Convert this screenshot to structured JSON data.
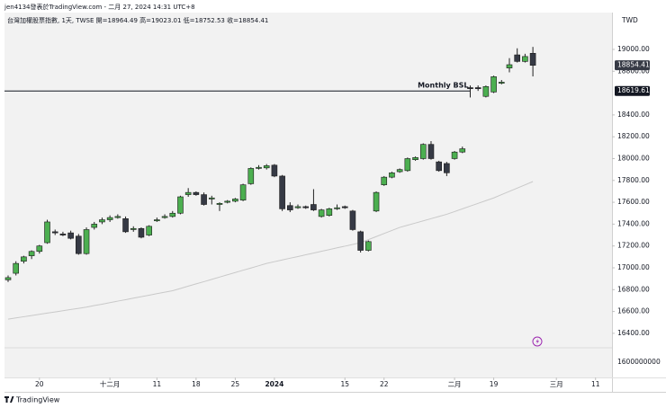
{
  "chart_data": {
    "type": "candlestick",
    "title": "jen4134發表於TradingView.com - 二月 27, 2024 14:31 UTC+8",
    "subtitle": "台灣加權股票指數, 1天, TWSE  開=18964.49 高=19023.01 低=18752.53 收=18854.41",
    "currency": "TWD",
    "brand": "TradingView",
    "up_color": "#4caf50",
    "down_color": "#363a45",
    "ohlc": [
      [
        16890,
        16930,
        16870,
        16910
      ],
      [
        16950,
        17060,
        16930,
        17040
      ],
      [
        17060,
        17110,
        17040,
        17100
      ],
      [
        17110,
        17160,
        17080,
        17150
      ],
      [
        17150,
        17210,
        17130,
        17200
      ],
      [
        17230,
        17440,
        17220,
        17420
      ],
      [
        17330,
        17350,
        17300,
        17320
      ],
      [
        17310,
        17330,
        17290,
        17300
      ],
      [
        17320,
        17340,
        17260,
        17270
      ],
      [
        17290,
        17310,
        17120,
        17130
      ],
      [
        17130,
        17370,
        17120,
        17350
      ],
      [
        17370,
        17420,
        17350,
        17400
      ],
      [
        17420,
        17460,
        17400,
        17440
      ],
      [
        17440,
        17480,
        17420,
        17460
      ],
      [
        17460,
        17490,
        17450,
        17470
      ],
      [
        17450,
        17470,
        17320,
        17330
      ],
      [
        17350,
        17380,
        17330,
        17360
      ],
      [
        17360,
        17370,
        17270,
        17280
      ],
      [
        17300,
        17390,
        17290,
        17380
      ],
      [
        17430,
        17460,
        17420,
        17440
      ],
      [
        17460,
        17490,
        17450,
        17470
      ],
      [
        17470,
        17520,
        17460,
        17500
      ],
      [
        17500,
        17660,
        17490,
        17650
      ],
      [
        17670,
        17730,
        17650,
        17690
      ],
      [
        17690,
        17700,
        17660,
        17670
      ],
      [
        17670,
        17690,
        17570,
        17580
      ],
      [
        17630,
        17660,
        17580,
        17640
      ],
      [
        17580,
        17600,
        17520,
        17590
      ],
      [
        17600,
        17620,
        17590,
        17610
      ],
      [
        17610,
        17640,
        17600,
        17630
      ],
      [
        17620,
        17770,
        17610,
        17760
      ],
      [
        17770,
        17920,
        17760,
        17910
      ],
      [
        17910,
        17940,
        17900,
        17920
      ],
      [
        17915,
        17950,
        17900,
        17935
      ],
      [
        17940,
        17950,
        17830,
        17840
      ],
      [
        17840,
        17850,
        17520,
        17540
      ],
      [
        17570,
        17600,
        17510,
        17530
      ],
      [
        17550,
        17580,
        17540,
        17560
      ],
      [
        17560,
        17570,
        17540,
        17550
      ],
      [
        17580,
        17720,
        17520,
        17530
      ],
      [
        17470,
        17540,
        17460,
        17530
      ],
      [
        17480,
        17550,
        17470,
        17540
      ],
      [
        17540,
        17580,
        17530,
        17550
      ],
      [
        17560,
        17570,
        17540,
        17550
      ],
      [
        17520,
        17530,
        17340,
        17350
      ],
      [
        17330,
        17340,
        17140,
        17160
      ],
      [
        17160,
        17250,
        17150,
        17240
      ],
      [
        17520,
        17700,
        17510,
        17690
      ],
      [
        17760,
        17840,
        17750,
        17830
      ],
      [
        17830,
        17880,
        17820,
        17870
      ],
      [
        17880,
        17910,
        17870,
        17900
      ],
      [
        17890,
        18010,
        17880,
        18000
      ],
      [
        17990,
        18020,
        17980,
        18010
      ],
      [
        18000,
        18140,
        17990,
        18130
      ],
      [
        18130,
        18160,
        17990,
        18000
      ],
      [
        17970,
        17980,
        17880,
        17890
      ],
      [
        17955,
        17970,
        17840,
        17870
      ],
      [
        18000,
        18070,
        17990,
        18060
      ],
      [
        18060,
        18110,
        18050,
        18090
      ],
      [
        18650,
        18670,
        18560,
        18640
      ],
      [
        18650,
        18670,
        18620,
        18640
      ],
      [
        18570,
        18670,
        18560,
        18660
      ],
      [
        18610,
        18760,
        18600,
        18750
      ],
      [
        18690,
        18720,
        18680,
        18700
      ],
      [
        18830,
        18920,
        18790,
        18860
      ],
      [
        18950,
        19010,
        18880,
        18890
      ],
      [
        18890,
        18960,
        18880,
        18935
      ],
      [
        18964.49,
        19023.01,
        18752.53,
        18854.41
      ]
    ],
    "ma": {
      "color": "#c9c9c9",
      "values": [
        16530,
        16541,
        16552,
        16563,
        16574,
        16585,
        16596,
        16607,
        16618,
        16629,
        16640,
        16654,
        16667,
        16681,
        16695,
        16708,
        16722,
        16736,
        16749,
        16763,
        16777,
        16790,
        16811,
        16832,
        16853,
        16873,
        16894,
        16915,
        16936,
        16957,
        16978,
        16998,
        17019,
        17040,
        17056,
        17072,
        17088,
        17103,
        17119,
        17135,
        17151,
        17167,
        17183,
        17198,
        17214,
        17230,
        17258,
        17286,
        17314,
        17342,
        17370,
        17390,
        17410,
        17430,
        17450,
        17470,
        17490,
        17515,
        17540,
        17565,
        17590,
        17615,
        17640,
        17670,
        17700,
        17730,
        17760,
        17790
      ]
    },
    "levels": [
      {
        "label": "Monthly BSL",
        "value": 18619.61,
        "x_end": 59,
        "color": "#131722"
      }
    ],
    "xlim": [
      -0.46,
      77.1
    ],
    "xticks": [
      {
        "value": 4,
        "label": "20"
      },
      {
        "value": 13,
        "label": "十二月"
      },
      {
        "value": 19,
        "label": "11"
      },
      {
        "value": 24,
        "label": "18"
      },
      {
        "value": 29,
        "label": "25"
      },
      {
        "value": 34,
        "label": "2024",
        "bold": true
      },
      {
        "value": 43,
        "label": "15"
      },
      {
        "value": 48,
        "label": "22"
      },
      {
        "value": 57,
        "label": "二月"
      },
      {
        "value": 62,
        "label": "19"
      },
      {
        "value": 70,
        "label": "三月"
      },
      {
        "value": 75,
        "label": "11"
      }
    ],
    "ylim": [
      16284,
      19329
    ],
    "yticks": [
      {
        "value": 16400,
        "label": "16400.00"
      },
      {
        "value": 16600,
        "label": "16600.00"
      },
      {
        "value": 16800,
        "label": "16800.00"
      },
      {
        "value": 17000,
        "label": "17000.00"
      },
      {
        "value": 17200,
        "label": "17200.00"
      },
      {
        "value": 17400,
        "label": "17400.00"
      },
      {
        "value": 17600,
        "label": "17600.00"
      },
      {
        "value": 17800,
        "label": "17800.00"
      },
      {
        "value": 18000,
        "label": "18000.00"
      },
      {
        "value": 18200,
        "label": "18200.00"
      },
      {
        "value": 18400,
        "label": "18400.00"
      },
      {
        "value": 18800,
        "label": "18800.00"
      },
      {
        "value": 19000,
        "label": "19000.00"
      }
    ],
    "volume_ticks": [
      1600000000
    ],
    "grid": false
  }
}
